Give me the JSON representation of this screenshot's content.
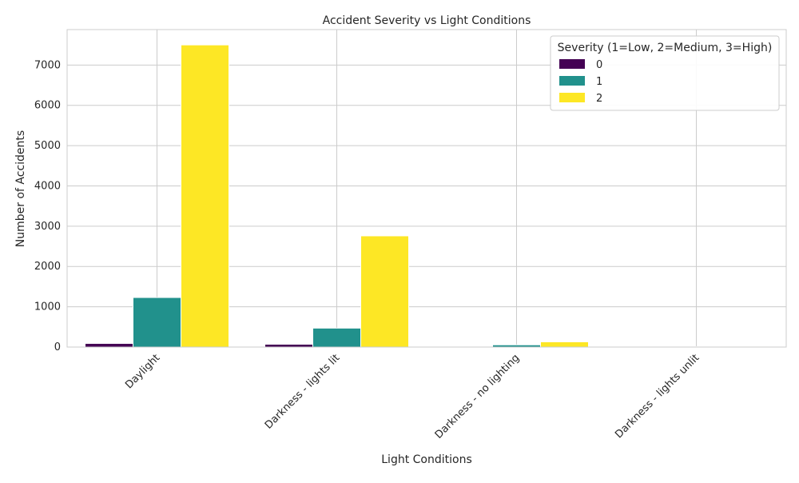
{
  "chart_data": {
    "type": "bar",
    "title": "Accident Severity vs Light Conditions",
    "xlabel": "Light Conditions",
    "ylabel": "Number of Accidents",
    "categories": [
      "Daylight",
      "Darkness - lights lit",
      "Darkness - no lighting",
      "Darkness - lights unlit"
    ],
    "series": [
      {
        "name": "0",
        "color": "#440154",
        "values": [
          90,
          70,
          6,
          3
        ]
      },
      {
        "name": "1",
        "color": "#21918c",
        "values": [
          1230,
          470,
          55,
          12
        ]
      },
      {
        "name": "2",
        "color": "#fde725",
        "values": [
          7500,
          2760,
          130,
          20
        ]
      }
    ],
    "ylim": [
      0,
      7880
    ],
    "yticks": [
      0,
      1000,
      2000,
      3000,
      4000,
      5000,
      6000,
      7000
    ],
    "legend": {
      "title": "Severity (1=Low, 2=Medium, 3=High)",
      "position": "top-right"
    },
    "grid": true
  }
}
